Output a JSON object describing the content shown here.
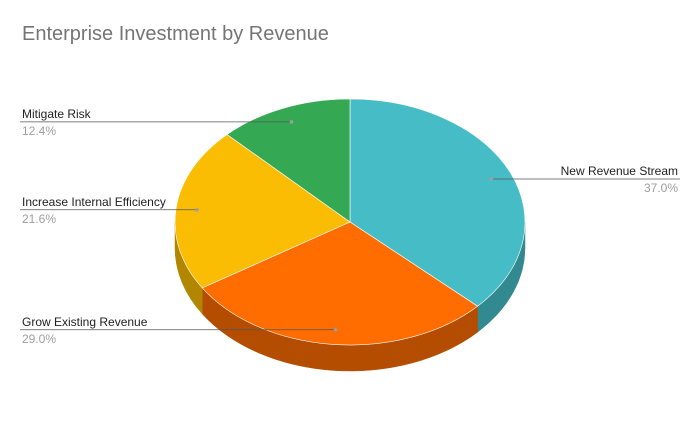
{
  "chart_data": {
    "type": "pie",
    "three_d": true,
    "title": "Enterprise Investment by Revenue",
    "legend": "none",
    "labels_position": "outside",
    "slices": [
      {
        "name": "New Revenue Stream",
        "value": 37.0,
        "value_label": "37.0%",
        "color": "#46bdc6",
        "side_color": "#338990",
        "label_side": "right"
      },
      {
        "name": "Grow Existing Revenue",
        "value": 29.0,
        "value_label": "29.0%",
        "color": "#ff6d01",
        "side_color": "#b44d00",
        "label_side": "left"
      },
      {
        "name": "Increase Internal Efficiency",
        "value": 21.6,
        "value_label": "21.6%",
        "color": "#fbbc04",
        "side_color": "#b38600",
        "label_side": "left"
      },
      {
        "name": "Mitigate Risk",
        "value": 12.4,
        "value_label": "12.4%",
        "color": "#34a853",
        "side_color": "#247a3b",
        "label_side": "left"
      }
    ]
  }
}
